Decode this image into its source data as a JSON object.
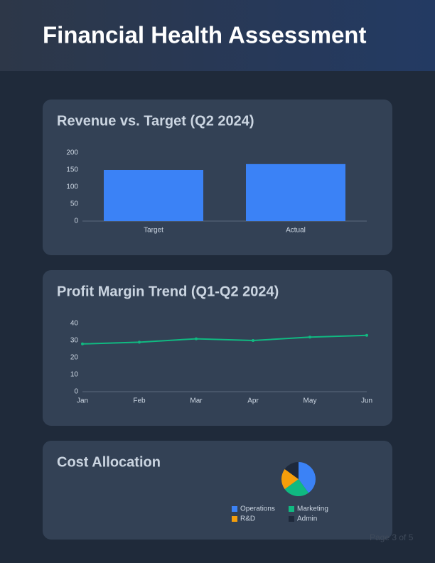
{
  "header": {
    "title": "Financial Health Assessment"
  },
  "chart_data": [
    {
      "type": "bar",
      "title": "Revenue vs. Target (Q2 2024)",
      "categories": [
        "Target",
        "Actual"
      ],
      "values": [
        150,
        167
      ],
      "color": "#3b82f6",
      "ylim": [
        0,
        200
      ],
      "yticks": [
        0,
        50,
        100,
        150,
        200
      ],
      "grid": false
    },
    {
      "type": "line",
      "title": "Profit Margin Trend (Q1-Q2 2024)",
      "categories": [
        "Jan",
        "Feb",
        "Mar",
        "Apr",
        "May",
        "Jun"
      ],
      "values": [
        28,
        29,
        31,
        30,
        32,
        33
      ],
      "color": "#10b981",
      "ylim": [
        0,
        40
      ],
      "yticks": [
        0,
        10,
        20,
        30,
        40
      ],
      "grid": false
    },
    {
      "type": "pie",
      "title": "Cost Allocation",
      "categories": [
        "Operations",
        "Marketing",
        "R&D",
        "Admin"
      ],
      "values": [
        40,
        25,
        20,
        15
      ],
      "colors": [
        "#3b82f6",
        "#10b981",
        "#f59e0b",
        "#1e293b"
      ]
    }
  ],
  "footer": {
    "page": "Page 3 of 5"
  }
}
